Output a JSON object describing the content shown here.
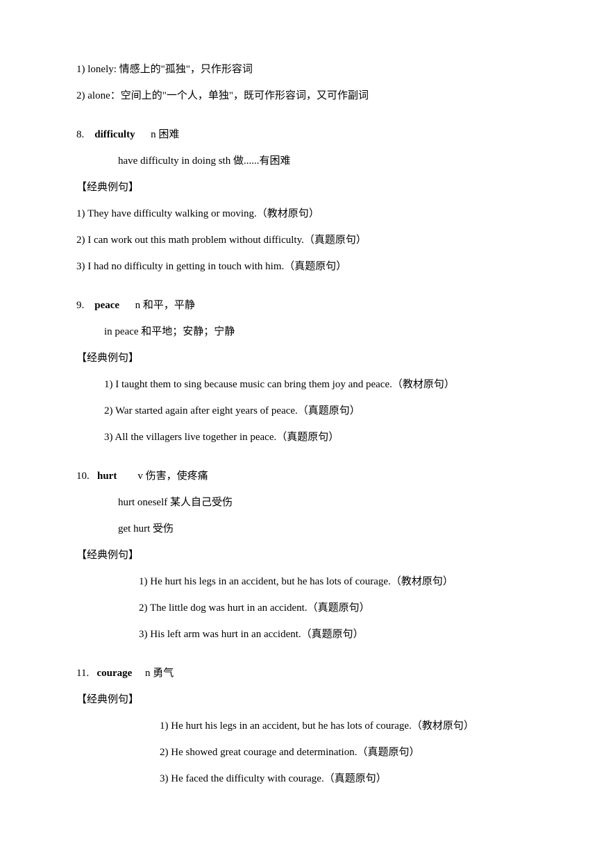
{
  "intro": {
    "line1": "1) lonely: 情感上的\"孤独\"，只作形容词",
    "line2": "2) alone：空间上的\"一个人，单独\"，既可作形容词，又可作副词"
  },
  "section8": {
    "header_num": "8.",
    "header_word": "difficulty",
    "header_def": "n 困难",
    "sub": "have difficulty in doing sth  做......有困难",
    "label": "【经典例句】",
    "ex1": "1) They have difficulty walking or moving.（教材原句）",
    "ex2": "2) I can work out this math problem without difficulty.（真题原句）",
    "ex3": "3) I had no difficulty in getting in touch with him.（真题原句）"
  },
  "section9": {
    "header_num": "9.",
    "header_word": "peace",
    "header_def": "n 和平，平静",
    "sub": "in peace  和平地；安静；宁静",
    "label": "【经典例句】",
    "ex1": "1) I taught them to sing because music can bring them joy and peace.（教材原句）",
    "ex2": "2) War started again after eight years of peace.（真题原句）",
    "ex3": "3) All the villagers live together in peace.（真题原句）"
  },
  "section10": {
    "header_num": "10.",
    "header_word": "hurt",
    "header_def": "v 伤害，使疼痛",
    "sub1": "hurt oneself  某人自己受伤",
    "sub2": "get hurt  受伤",
    "label": "【经典例句】",
    "ex1": "1) He hurt his legs in an accident, but he has lots of courage.（教材原句）",
    "ex2": "2) The little dog was hurt in an accident.（真题原句）",
    "ex3": "3) His left arm was hurt in an accident.（真题原句）"
  },
  "section11": {
    "header_num": "11.",
    "header_word": "courage",
    "header_def": "n 勇气",
    "label": "【经典例句】",
    "ex1": "1) He hurt his legs in an accident, but he has lots of courage.（教材原句）",
    "ex2": "2) He showed great courage and determination.（真题原句）",
    "ex3": "3) He faced the difficulty with courage.（真题原句）"
  }
}
